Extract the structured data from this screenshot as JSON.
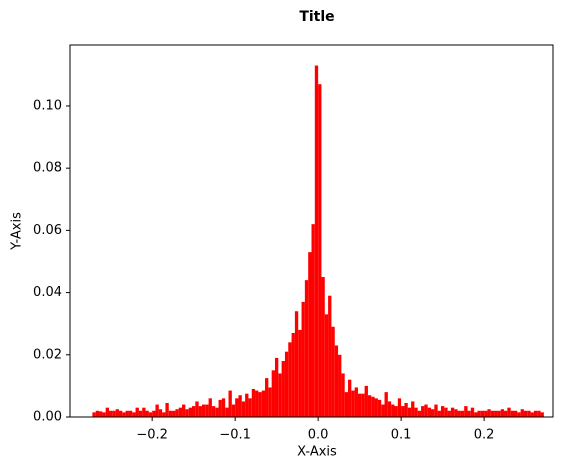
{
  "chart_data": {
    "type": "histogram",
    "title": "Title",
    "xlabel": "X-Axis",
    "ylabel": "Y-Axis",
    "color": "#ff0000",
    "bins": [
      -0.272,
      -0.268,
      -0.264,
      -0.26,
      -0.256,
      -0.252,
      -0.248,
      -0.244,
      -0.24,
      -0.236,
      -0.232,
      -0.228,
      -0.224,
      -0.22,
      -0.216,
      -0.212,
      -0.208,
      -0.204,
      -0.2,
      -0.196,
      -0.192,
      -0.188,
      -0.184,
      -0.18,
      -0.176,
      -0.172,
      -0.168,
      -0.164,
      -0.16,
      -0.156,
      -0.152,
      -0.148,
      -0.144,
      -0.14,
      -0.136,
      -0.132,
      -0.128,
      -0.124,
      -0.12,
      -0.116,
      -0.112,
      -0.108,
      -0.104,
      -0.1,
      -0.096,
      -0.092,
      -0.088,
      -0.084,
      -0.08,
      -0.076,
      -0.072,
      -0.068,
      -0.064,
      -0.06,
      -0.056,
      -0.052,
      -0.048,
      -0.044,
      -0.04,
      -0.036,
      -0.032,
      -0.028,
      -0.024,
      -0.02,
      -0.016,
      -0.012,
      -0.008,
      -0.004,
      0,
      0.004,
      0.008,
      0.012,
      0.016,
      0.02,
      0.024,
      0.028,
      0.032,
      0.036,
      0.04,
      0.044,
      0.048,
      0.052,
      0.056,
      0.06,
      0.064,
      0.068,
      0.072,
      0.076,
      0.08,
      0.084,
      0.088,
      0.092,
      0.096,
      0.1,
      0.104,
      0.108,
      0.112,
      0.116,
      0.12,
      0.124,
      0.128,
      0.132,
      0.136,
      0.14,
      0.144,
      0.148,
      0.152,
      0.156,
      0.16,
      0.164,
      0.168,
      0.172,
      0.176,
      0.18,
      0.184,
      0.188,
      0.192,
      0.196,
      0.2,
      0.204,
      0.208,
      0.212,
      0.216,
      0.22,
      0.224,
      0.228,
      0.232,
      0.236,
      0.24,
      0.244,
      0.248,
      0.252,
      0.256,
      0.26,
      0.264,
      0.268,
      0.272
    ],
    "values": [
      0.0015,
      0.002,
      0.0018,
      0.0015,
      0.003,
      0.002,
      0.002,
      0.0025,
      0.002,
      0.0015,
      0.002,
      0.002,
      0.0015,
      0.003,
      0.002,
      0.003,
      0.002,
      0.0015,
      0.002,
      0.004,
      0.0025,
      0.0015,
      0.0045,
      0.002,
      0.002,
      0.0025,
      0.003,
      0.004,
      0.0025,
      0.003,
      0.0035,
      0.005,
      0.0035,
      0.004,
      0.004,
      0.006,
      0.0035,
      0.003,
      0.0055,
      0.006,
      0.003,
      0.0085,
      0.004,
      0.006,
      0.007,
      0.005,
      0.0075,
      0.006,
      0.009,
      0.0085,
      0.008,
      0.0085,
      0.0125,
      0.0095,
      0.015,
      0.019,
      0.014,
      0.018,
      0.021,
      0.024,
      0.027,
      0.034,
      0.028,
      0.037,
      0.044,
      0.053,
      0.062,
      0.113,
      0.107,
      0.045,
      0.033,
      0.039,
      0.029,
      0.023,
      0.02,
      0.014,
      0.008,
      0.012,
      0.0085,
      0.0095,
      0.0075,
      0.0075,
      0.01,
      0.007,
      0.0065,
      0.006,
      0.0055,
      0.004,
      0.008,
      0.005,
      0.004,
      0.0035,
      0.006,
      0.0035,
      0.0045,
      0.003,
      0.005,
      0.003,
      0.002,
      0.0035,
      0.004,
      0.003,
      0.0025,
      0.004,
      0.002,
      0.0035,
      0.003,
      0.002,
      0.003,
      0.0025,
      0.002,
      0.002,
      0.0035,
      0.002,
      0.003,
      0.0015,
      0.002,
      0.002,
      0.002,
      0.0025,
      0.002,
      0.002,
      0.002,
      0.0025,
      0.002,
      0.003,
      0.002,
      0.002,
      0.0015,
      0.0025,
      0.002,
      0.002,
      0.0015,
      0.002,
      0.002,
      0.0015
    ],
    "xlim": [
      -0.299,
      0.283
    ],
    "ylim": [
      0,
      0.1196
    ],
    "xticks": [
      {
        "value": -0.2,
        "label": "−0.2"
      },
      {
        "value": -0.1,
        "label": "−0.1"
      },
      {
        "value": 0,
        "label": "0.0"
      },
      0.1,
      0.2
    ],
    "yticks": [
      {
        "value": 0,
        "label": "0.00"
      },
      0.02,
      0.04,
      0.06,
      0.08,
      {
        "value": 0.1,
        "label": "0.10"
      }
    ]
  }
}
